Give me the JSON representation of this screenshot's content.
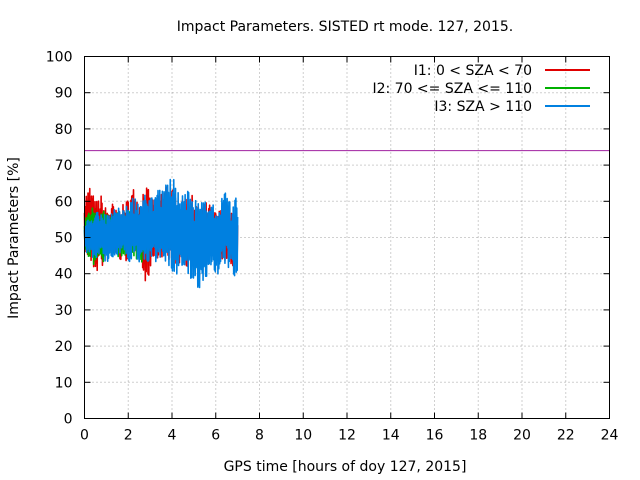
{
  "chart_data": {
    "type": "line",
    "title": "Impact Parameters. SISTED rt mode. 127, 2015.",
    "xlabel": "GPS time [hours of doy 127, 2015]",
    "ylabel": "Impact Parameters [%]",
    "xlim": [
      0,
      24
    ],
    "ylim": [
      0,
      100
    ],
    "xticks": [
      0,
      2,
      4,
      6,
      8,
      10,
      12,
      14,
      16,
      18,
      20,
      22,
      24
    ],
    "yticks": [
      0,
      10,
      20,
      30,
      40,
      50,
      60,
      70,
      80,
      90,
      100
    ],
    "grid": true,
    "legend_position": "top-right",
    "threshold": {
      "value": 74,
      "color": "#a020a0"
    },
    "series": [
      {
        "name": "I1: 0 < SZA < 70",
        "color": "#e00000",
        "x": [
          0,
          0.25,
          0.5,
          0.75,
          1,
          1.25,
          1.5,
          1.75,
          2,
          2.25,
          2.5,
          2.75,
          3,
          3.25,
          3.5,
          3.75,
          4,
          4.25,
          4.5,
          4.75,
          5,
          5.25,
          5.5,
          5.75,
          6,
          6.25,
          6.5,
          6.75,
          7
        ],
        "min": [
          46,
          42,
          40,
          41,
          43,
          44,
          45,
          42,
          44,
          46,
          45,
          37,
          40,
          44,
          45,
          41,
          43,
          42,
          44,
          41,
          45,
          43,
          44,
          46,
          45,
          44,
          43,
          41,
          42
        ],
        "max": [
          62,
          65,
          60,
          62,
          58,
          60,
          57,
          59,
          61,
          64,
          60,
          66,
          62,
          60,
          63,
          66,
          64,
          62,
          60,
          63,
          61,
          58,
          60,
          59,
          57,
          58,
          56,
          57,
          55
        ]
      },
      {
        "name": "I2: 70 <= SZA <= 110",
        "color": "#00b000",
        "x": [
          0,
          0.2,
          0.4,
          0.6,
          0.8,
          1,
          1.2,
          1.4,
          1.6,
          1.8,
          2,
          2.2,
          2.4,
          2.6,
          2.8,
          3
        ],
        "min": [
          43,
          45,
          41,
          44,
          42,
          46,
          45,
          43,
          45,
          44,
          46,
          45,
          44,
          43,
          45,
          46
        ],
        "max": [
          58,
          57,
          59,
          56,
          58,
          57,
          56,
          58,
          57,
          56,
          59,
          57,
          56,
          58,
          57,
          56
        ]
      },
      {
        "name": "I3: SZA > 110",
        "color": "#0080e0",
        "x": [
          0,
          0.25,
          0.5,
          0.75,
          1,
          1.25,
          1.5,
          1.75,
          2,
          2.25,
          2.5,
          2.75,
          3,
          3.25,
          3.5,
          3.75,
          4,
          4.25,
          4.5,
          4.75,
          5,
          5.25,
          5.5,
          5.75,
          6,
          6.25,
          6.5,
          6.75,
          7
        ],
        "min": [
          46,
          45,
          44,
          45,
          43,
          44,
          45,
          44,
          43,
          44,
          43,
          42,
          44,
          41,
          42,
          43,
          40,
          38,
          39,
          40,
          37,
          36,
          38,
          40,
          39,
          40,
          42,
          39,
          40
        ],
        "max": [
          55,
          56,
          57,
          58,
          56,
          57,
          59,
          58,
          60,
          61,
          60,
          62,
          61,
          63,
          65,
          66,
          67,
          64,
          62,
          63,
          61,
          62,
          60,
          59,
          61,
          63,
          64,
          60,
          62
        ]
      }
    ]
  }
}
